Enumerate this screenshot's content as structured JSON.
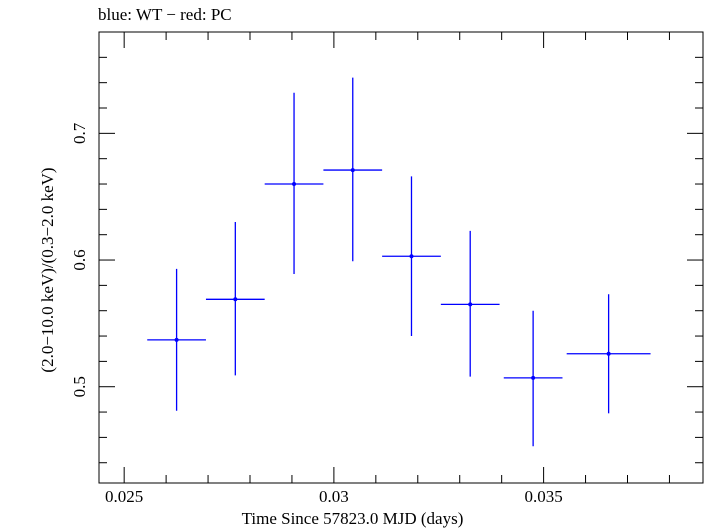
{
  "chart_data": {
    "type": "scatter",
    "title": "blue: WT − red: PC",
    "xlabel": "Time Since 57823.0 MJD (days)",
    "ylabel": "(2.0−10.0 keV)/(0.3−2.0 keV)",
    "xlim": [
      0.0244,
      0.0388
    ],
    "ylim": [
      0.424,
      0.78
    ],
    "x_ticks": [
      0.025,
      0.03,
      0.035
    ],
    "x_tick_labels": [
      "0.025",
      "0.03",
      "0.035"
    ],
    "y_ticks": [
      0.5,
      0.6,
      0.7
    ],
    "y_tick_labels": [
      "0.5",
      "0.6",
      "0.7"
    ],
    "grid": false,
    "series": [
      {
        "color": "#0000ff",
        "points": [
          {
            "x": 0.02625,
            "xerr": 0.0007,
            "y": 0.537,
            "yerr_low": 0.056,
            "yerr_high": 0.056
          },
          {
            "x": 0.02765,
            "xerr": 0.0007,
            "y": 0.569,
            "yerr_low": 0.06,
            "yerr_high": 0.061
          },
          {
            "x": 0.02905,
            "xerr": 0.0007,
            "y": 0.66,
            "yerr_low": 0.071,
            "yerr_high": 0.072
          },
          {
            "x": 0.03045,
            "xerr": 0.0007,
            "y": 0.671,
            "yerr_low": 0.072,
            "yerr_high": 0.073
          },
          {
            "x": 0.03185,
            "xerr": 0.0007,
            "y": 0.603,
            "yerr_low": 0.063,
            "yerr_high": 0.063
          },
          {
            "x": 0.03325,
            "xerr": 0.0007,
            "y": 0.565,
            "yerr_low": 0.057,
            "yerr_high": 0.058
          },
          {
            "x": 0.03475,
            "xerr": 0.0007,
            "y": 0.507,
            "yerr_low": 0.054,
            "yerr_high": 0.053
          },
          {
            "x": 0.03655,
            "xerr": 0.001,
            "y": 0.526,
            "yerr_low": 0.047,
            "yerr_high": 0.047
          }
        ]
      }
    ]
  }
}
